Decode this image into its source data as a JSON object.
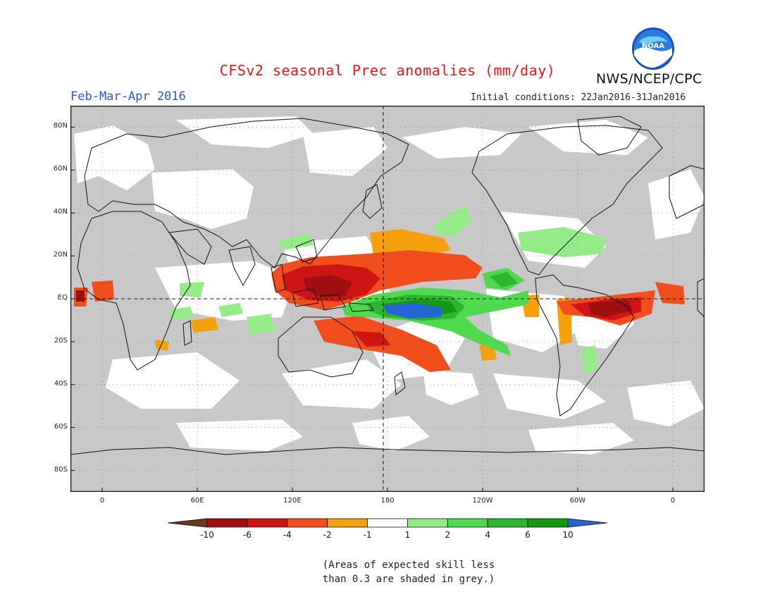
{
  "header": {
    "title": "CFSv2 seasonal Prec anomalies (mm/day)",
    "season": "Feb-Mar-Apr 2016",
    "initial_conditions": "Initial conditions: 22Jan2016-31Jan2016",
    "agency": "NWS/NCEP/CPC",
    "logo_text": "NOAA"
  },
  "map": {
    "projection": "cylindrical equidistant",
    "lon_range": [
      -20,
      380
    ],
    "lat_range": [
      -90,
      90
    ],
    "background": "#c8c8c8",
    "lat_labels": [
      "80N",
      "60N",
      "40N",
      "20N",
      "EQ",
      "20S",
      "40S",
      "60S",
      "80S"
    ],
    "lat_values": [
      80,
      60,
      40,
      20,
      0,
      -20,
      -40,
      -60,
      -80
    ],
    "lon_labels": [
      "0",
      "60E",
      "120E",
      "180",
      "120W",
      "60W",
      "0"
    ],
    "lon_values": [
      0,
      60,
      120,
      180,
      240,
      300,
      360
    ],
    "reference_lines": [
      "equator",
      "dateline"
    ],
    "anomaly_regions": [
      {
        "name": "west-pacific-dry-core",
        "lon": [
          140,
          170
        ],
        "lat": [
          2,
          15
        ],
        "category": "-6 to -4"
      },
      {
        "name": "north-pacific-dry-band",
        "lon": [
          120,
          205
        ],
        "lat": [
          5,
          18
        ],
        "category": "-4 to -2"
      },
      {
        "name": "central-pacific-dry-north",
        "lon": [
          170,
          200
        ],
        "lat": [
          18,
          28
        ],
        "category": "-2 to -1"
      },
      {
        "name": "central-pacific-wet",
        "lon": [
          160,
          240
        ],
        "lat": [
          -15,
          5
        ],
        "category": "2 to 6"
      },
      {
        "name": "central-pacific-wet-core",
        "lon": [
          178,
          200
        ],
        "lat": [
          -8,
          -2
        ],
        "category": "6 to 10"
      },
      {
        "name": "south-pacific-dry",
        "lon": [
          140,
          210
        ],
        "lat": [
          -35,
          -10
        ],
        "category": "-4 to -2"
      },
      {
        "name": "amazon-dry",
        "lon": [
          300,
          340
        ],
        "lat": [
          -12,
          5
        ],
        "category": "-6 to -4"
      },
      {
        "name": "tropical-atlantic-dry",
        "lon": [
          310,
          345
        ],
        "lat": [
          0,
          5
        ],
        "category": "-10 to -6"
      },
      {
        "name": "gulf-of-mexico-wet",
        "lon": [
          258,
          285
        ],
        "lat": [
          20,
          32
        ],
        "category": "1 to 2"
      },
      {
        "name": "west-africa-coast-dry",
        "lon": [
          -10,
          10
        ],
        "lat": [
          -2,
          5
        ],
        "category": "-6 to -4"
      },
      {
        "name": "maritime-continent-dry",
        "lon": [
          90,
          120
        ],
        "lat": [
          -12,
          5
        ],
        "category": "-2 to -1"
      }
    ]
  },
  "colorbar": {
    "ticks": [
      "-10",
      "-6",
      "-4",
      "-2",
      "-1",
      "1",
      "2",
      "4",
      "6",
      "10"
    ],
    "colors": [
      "#6b3a1e",
      "#9e0f0f",
      "#cf1414",
      "#f24d1d",
      "#f5a00d",
      "#ffffff",
      "#95eb87",
      "#4fd94f",
      "#2eb52e",
      "#129b12",
      "#2566d4"
    ]
  },
  "footnote": {
    "line1": "(Areas of expected skill less",
    "line2": "than 0.3 are shaded in grey.)"
  }
}
